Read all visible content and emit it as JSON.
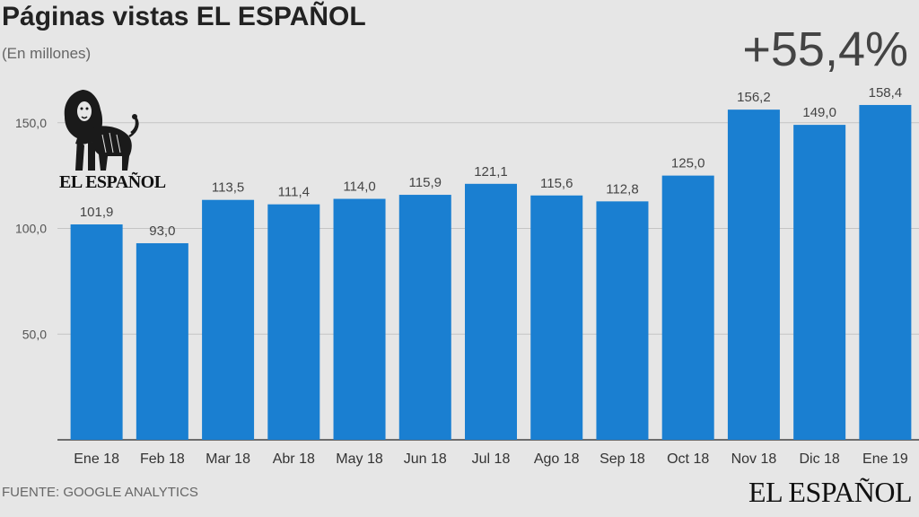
{
  "header": {
    "title": "Páginas vistas EL ESPAÑOL",
    "subtitle": "(En millones)",
    "highlight": "+55,4%"
  },
  "footer": {
    "source": "FUENTE: GOOGLE ANALYTICS",
    "brand": "EL ESPAÑOL"
  },
  "logo": {
    "text": "EL ESPAÑOL",
    "icon": "lion-icon"
  },
  "colors": {
    "bar": "#1a7fd1",
    "background": "#e6e6e6",
    "grid": "#c4c4c4"
  },
  "chart_data": {
    "type": "bar",
    "title": "Páginas vistas EL ESPAÑOL",
    "subtitle": "(En millones)",
    "categories": [
      "Ene 18",
      "Feb 18",
      "Mar 18",
      "Abr 18",
      "May 18",
      "Jun 18",
      "Jul 18",
      "Ago 18",
      "Sep 18",
      "Oct 18",
      "Nov 18",
      "Dic 18",
      "Ene 19"
    ],
    "values": [
      101.9,
      93.0,
      113.5,
      111.4,
      114.0,
      115.9,
      121.1,
      115.6,
      112.8,
      125.0,
      156.2,
      149.0,
      158.4
    ],
    "value_labels": [
      "101,9",
      "93,0",
      "113,5",
      "111,4",
      "114,0",
      "115,9",
      "121,1",
      "115,6",
      "112,8",
      "125,0",
      "156,2",
      "149,0",
      "158,4"
    ],
    "yticks": [
      50,
      100,
      150
    ],
    "ytick_labels": [
      "50,0",
      "100,0",
      "150,0"
    ],
    "ylim": [
      0,
      180
    ],
    "grid": true
  }
}
